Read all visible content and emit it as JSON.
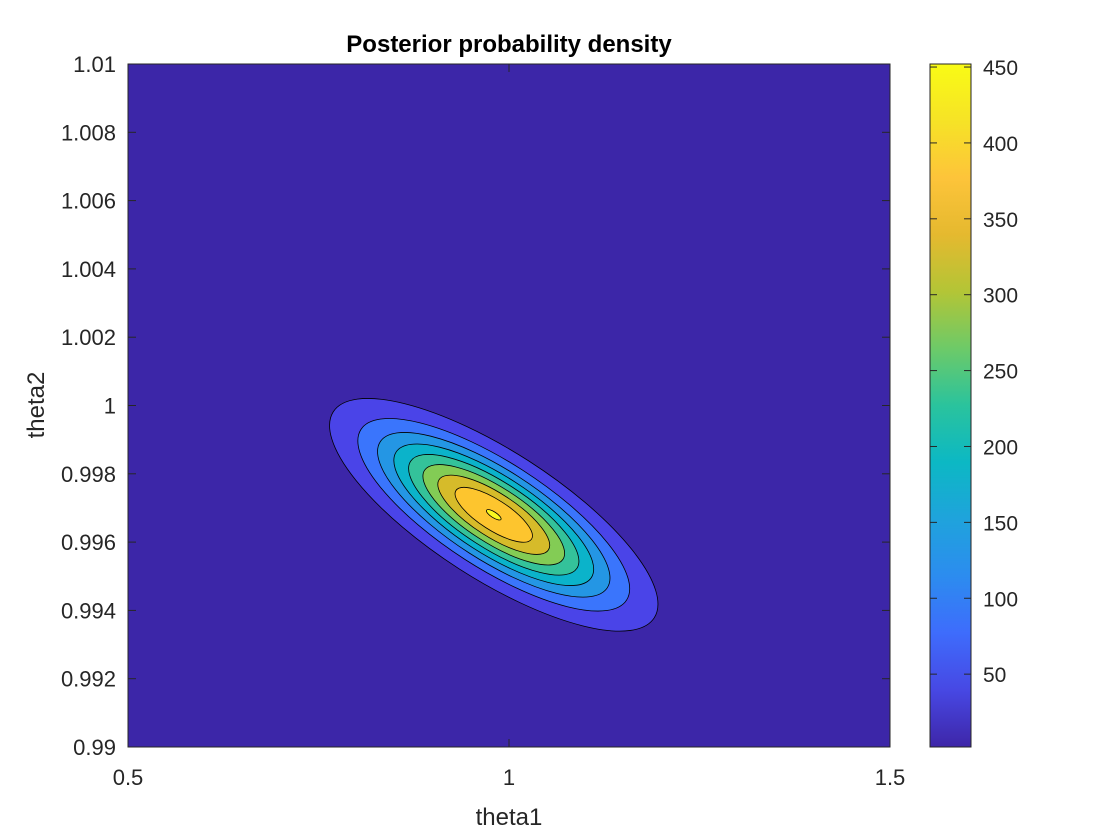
{
  "chart_data": {
    "type": "contourf",
    "title": "Posterior probability density",
    "xlabel": "theta1",
    "ylabel": "theta2",
    "xlim": [
      0.5,
      1.5
    ],
    "ylim": [
      0.99,
      1.01
    ],
    "xticks": [
      0.5,
      1,
      1.5
    ],
    "xtick_labels": [
      "0.5",
      "1",
      "1.5"
    ],
    "yticks": [
      0.99,
      0.992,
      0.994,
      0.996,
      0.998,
      1,
      1.002,
      1.004,
      1.006,
      1.008,
      1.01
    ],
    "ytick_labels": [
      "0.99",
      "0.992",
      "0.994",
      "0.996",
      "0.998",
      "1",
      "1.002",
      "1.004",
      "1.006",
      "1.008",
      "1.01"
    ],
    "grid": false,
    "peak": {
      "theta1": 0.98,
      "theta2": 0.9968,
      "density": 452
    },
    "levels": [
      {
        "value": 50,
        "color": "#4a44e8"
      },
      {
        "value": 100,
        "color": "#3a75fc"
      },
      {
        "value": 150,
        "color": "#2496e4"
      },
      {
        "value": 200,
        "color": "#0bb3ca"
      },
      {
        "value": 250,
        "color": "#34c29a"
      },
      {
        "value": 300,
        "color": "#83cc55"
      },
      {
        "value": 350,
        "color": "#d6bb2a"
      },
      {
        "value": 400,
        "color": "#fdc52e"
      },
      {
        "value": 450,
        "color": "#f9f820"
      }
    ],
    "background_color": "#3c26a8",
    "colorbar": {
      "range": [
        2,
        452
      ],
      "ticks": [
        50,
        100,
        150,
        200,
        250,
        300,
        350,
        400,
        450
      ],
      "tick_labels": [
        "50",
        "100",
        "150",
        "200",
        "250",
        "300",
        "350",
        "400",
        "450"
      ],
      "colormap": "parula",
      "colormap_stops": [
        "#3e26a8",
        "#4748e4",
        "#3e6cfc",
        "#2c8cef",
        "#1fa3dc",
        "#0cb8c4",
        "#2ac39d",
        "#6dca68",
        "#b3c536",
        "#e5b92f",
        "#fdc43a",
        "#f6e326",
        "#f9fb15"
      ]
    }
  }
}
